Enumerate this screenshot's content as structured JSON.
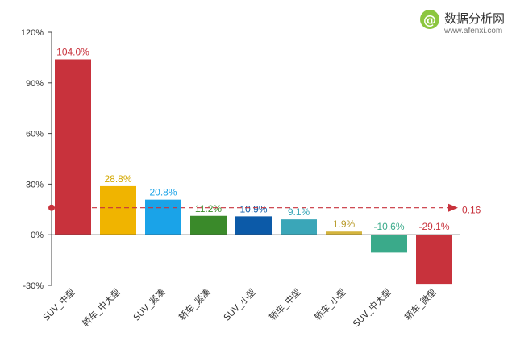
{
  "watermark": {
    "logo_glyph": "@",
    "title": "数据分析网",
    "site": "www.afenxi.com",
    "color": "#8cc63f"
  },
  "chart_data": {
    "type": "bar",
    "categories": [
      "SUV_中型",
      "轿车_中大型",
      "SUV_紧凑",
      "轿车_紧凑",
      "SUV_小型",
      "轿车_中型",
      "轿车_小型",
      "SUV_中大型",
      "轿车_微型"
    ],
    "values": [
      104.0,
      28.8,
      20.8,
      11.2,
      10.9,
      9.1,
      1.9,
      -10.6,
      -29.1
    ],
    "value_labels": [
      "104.0%",
      "28.8%",
      "20.8%",
      "11.2%",
      "10.9%",
      "9.1%",
      "1.9%",
      "-10.6%",
      "-29.1%"
    ],
    "colors": [
      "#c8323c",
      "#f0b400",
      "#1aa3e8",
      "#3a8a2a",
      "#0c5aa8",
      "#3aa6b8",
      "#d4b43c",
      "#3aaa8a",
      "#c8323c"
    ],
    "label_colors": [
      "#c8323c",
      "#d4a800",
      "#1aa3e8",
      "#3a8a2a",
      "#0c5aa8",
      "#3aa6b8",
      "#b89a28",
      "#3aaa8a",
      "#c8323c"
    ],
    "y_ticks": [
      "120%",
      "90%",
      "60%",
      "30%",
      "0%",
      "-30%"
    ],
    "y_tick_values": [
      120,
      90,
      60,
      30,
      0,
      -30
    ],
    "ylim": [
      -30,
      120
    ],
    "reference_line": {
      "value": 16,
      "label": "0.16",
      "color": "#c8323c"
    },
    "xlabel": "",
    "ylabel": "",
    "grid": false
  }
}
